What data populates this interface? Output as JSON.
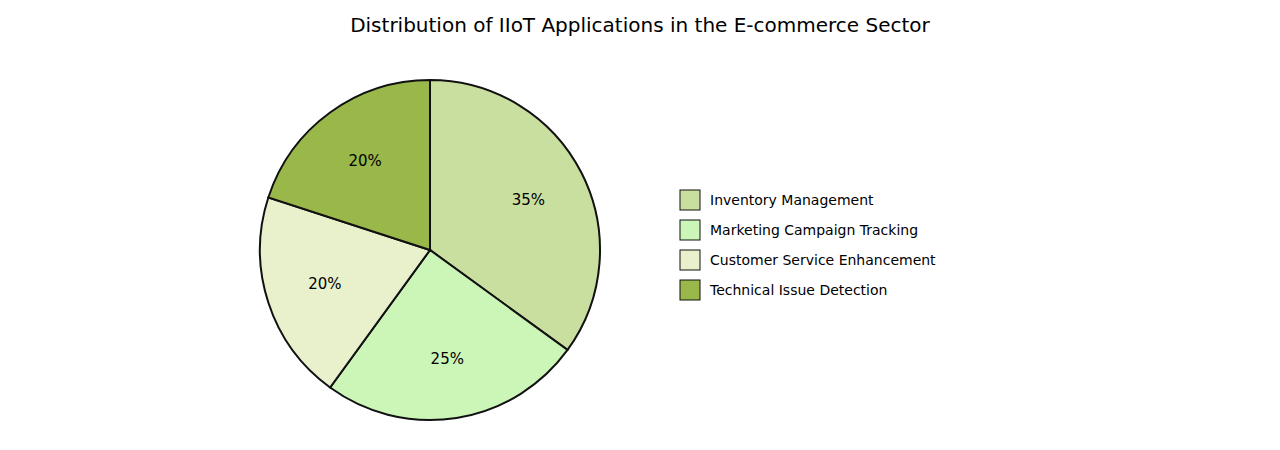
{
  "chart_data": {
    "type": "pie",
    "title": "Distribution of IIoT Applications in the E-commerce Sector",
    "categories": [
      "Inventory Management",
      "Marketing Campaign Tracking",
      "Customer Service Enhancement",
      "Technical Issue Detection"
    ],
    "values": [
      35,
      25,
      20,
      20
    ],
    "value_labels": [
      "35%",
      "25%",
      "20%",
      "20%"
    ],
    "colors": [
      "#c8dfa0",
      "#ccf5b8",
      "#e8f0cc",
      "#9ab84a"
    ],
    "data_labels": true,
    "legend": "right"
  }
}
